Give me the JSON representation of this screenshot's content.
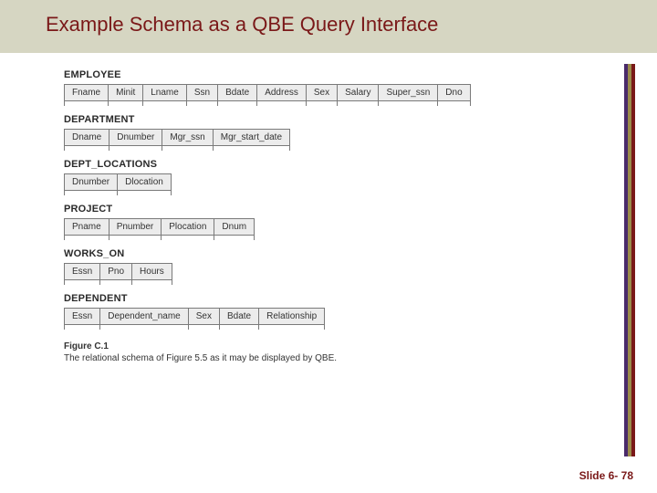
{
  "title": "Example Schema as a QBE Query Interface",
  "title_style": {
    "background_color": "#d6d6c2",
    "text_color": "#7a1818",
    "font_size_pt": 17
  },
  "accent_stripe_colors": [
    "#4a2a6a",
    "#9a8a4a",
    "#7a1818"
  ],
  "table_style": {
    "cell_background": "#ececec",
    "border_color": "#7a7a7a",
    "cell_font_size_pt": 8,
    "name_font_size_pt": 8
  },
  "schemas": [
    {
      "name": "EMPLOYEE",
      "columns": [
        "Fname",
        "Minit",
        "Lname",
        "Ssn",
        "Bdate",
        "Address",
        "Sex",
        "Salary",
        "Super_ssn",
        "Dno"
      ]
    },
    {
      "name": "DEPARTMENT",
      "columns": [
        "Dname",
        "Dnumber",
        "Mgr_ssn",
        "Mgr_start_date"
      ]
    },
    {
      "name": "DEPT_LOCATIONS",
      "columns": [
        "Dnumber",
        "Dlocation"
      ]
    },
    {
      "name": "PROJECT",
      "columns": [
        "Pname",
        "Pnumber",
        "Plocation",
        "Dnum"
      ]
    },
    {
      "name": "WORKS_ON",
      "columns": [
        "Essn",
        "Pno",
        "Hours"
      ]
    },
    {
      "name": "DEPENDENT",
      "columns": [
        "Essn",
        "Dependent_name",
        "Sex",
        "Bdate",
        "Relationship"
      ]
    }
  ],
  "figure": {
    "label": "Figure C.1",
    "caption": "The relational schema of Figure 5.5 as it may be displayed by QBE."
  },
  "footer": "Slide 6- 78"
}
